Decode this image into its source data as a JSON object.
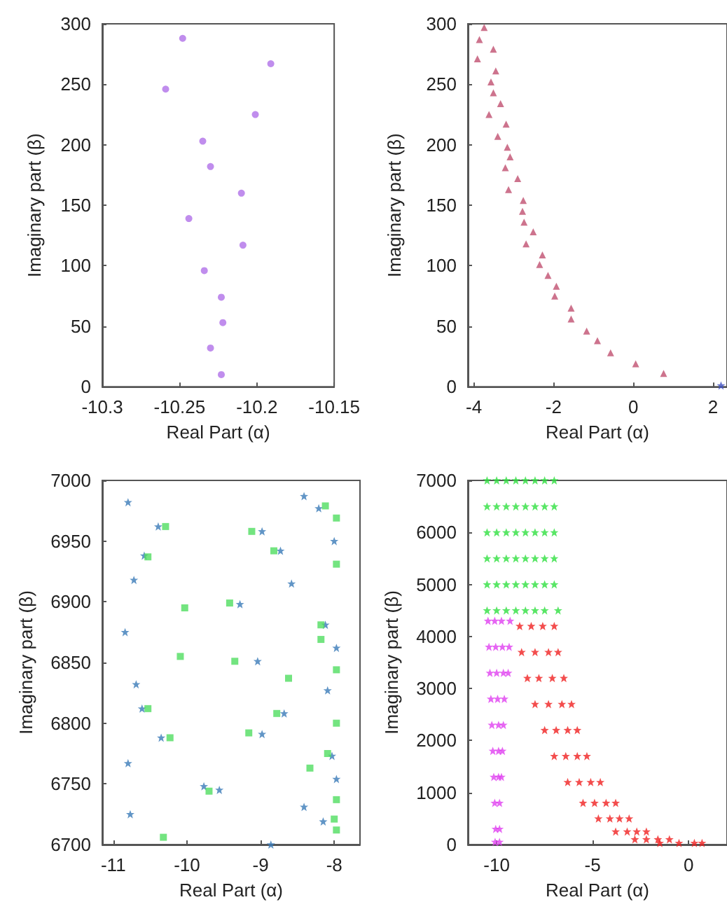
{
  "chart_data": [
    {
      "type": "scatter",
      "xlabel": "Real Part (α)",
      "ylabel": "Imaginary part (β)",
      "xlim": [
        -10.3,
        -10.15
      ],
      "xticks": [
        -10.3,
        -10.25,
        -10.2,
        -10.15
      ],
      "ylim": [
        0,
        300
      ],
      "yticks": [
        0,
        50,
        100,
        150,
        200,
        250,
        300
      ],
      "series": [
        {
          "color": "#b070e8",
          "marker": "circle",
          "x": [
            -10.248,
            -10.191,
            -10.259,
            -10.201,
            -10.235,
            -10.23,
            -10.21,
            -10.244,
            -10.209,
            -10.234,
            -10.223,
            -10.222,
            -10.23,
            -10.223
          ],
          "values": [
            288,
            267,
            246,
            225,
            203,
            182,
            160,
            139,
            117,
            96,
            74,
            53,
            32,
            10
          ]
        }
      ]
    },
    {
      "type": "scatter",
      "xlabel": "Real Part (α)",
      "ylabel": "Imaginary part (β)",
      "xlim": [
        -4.15,
        2.35
      ],
      "xticks": [
        -4,
        -2,
        0,
        2
      ],
      "ylim": [
        0,
        300
      ],
      "yticks": [
        0,
        50,
        100,
        150,
        200,
        250,
        300
      ],
      "series": [
        {
          "color": "#c05070",
          "marker": "triangle",
          "x": [
            -3.74,
            -3.86,
            -3.51,
            -3.91,
            -3.45,
            -3.57,
            -3.51,
            -3.33,
            -3.62,
            -3.19,
            -3.4,
            -3.16,
            -3.09,
            -3.21,
            -2.9,
            -3.13,
            -2.76,
            -2.78,
            -2.74,
            -2.51,
            -2.69,
            -2.28,
            -2.35,
            -2.14,
            -1.93,
            -1.97,
            -1.56,
            -1.56,
            -1.17,
            -0.9,
            -0.57,
            0.06,
            0.76
          ],
          "values": [
            297,
            287,
            279,
            271,
            261,
            252,
            243,
            234,
            225,
            217,
            207,
            198,
            190,
            181,
            172,
            163,
            154,
            145,
            136,
            128,
            118,
            109,
            101,
            92,
            83,
            75,
            65,
            56,
            46,
            38,
            28,
            19,
            11
          ]
        },
        {
          "color": "#4050c0",
          "marker": "star",
          "x": [
            2.2
          ],
          "values": [
            1
          ]
        }
      ]
    },
    {
      "type": "scatter",
      "xlabel": "Real Part (α)",
      "ylabel": "Imaginary part (β)",
      "xlim": [
        -11.15,
        -7.65
      ],
      "xticks": [
        -11,
        -10,
        -9,
        -8
      ],
      "ylim": [
        6700,
        7000
      ],
      "yticks": [
        6700,
        6750,
        6800,
        6850,
        6900,
        6950,
        7000
      ],
      "series": [
        {
          "color": "#3a7ab8",
          "marker": "star",
          "x": [
            -10.8,
            -10.39,
            -10.58,
            -10.72,
            -10.84,
            -10.69,
            -10.61,
            -10.35,
            -10.8,
            -9.77,
            -9.56,
            -10.77,
            -8.98,
            -8.73,
            -8.58,
            -9.28,
            -9.04,
            -8.68,
            -8.98,
            -8.41,
            -8.21,
            -8.0,
            -8.12,
            -7.97,
            -8.09,
            -8.03,
            -8.41,
            -8.15,
            -7.97,
            -8.86
          ],
          "values": [
            6982,
            6962,
            6938,
            6918,
            6875,
            6832,
            6812,
            6788,
            6767,
            6748,
            6745,
            6725,
            6958,
            6942,
            6915,
            6898,
            6851,
            6808,
            6791,
            6987,
            6977,
            6950,
            6881,
            6862,
            6827,
            6773,
            6731,
            6719,
            6754,
            6700
          ]
        },
        {
          "color": "#50dd60",
          "marker": "square",
          "x": [
            -10.29,
            -10.53,
            -10.03,
            -10.09,
            -10.53,
            -10.23,
            -9.7,
            -10.32,
            -9.12,
            -8.82,
            -9.42,
            -9.35,
            -8.62,
            -8.78,
            -9.16,
            -8.12,
            -7.97,
            -7.97,
            -8.18,
            -8.18,
            -7.97,
            -7.97,
            -8.09,
            -8.33,
            -7.97,
            -8.0,
            -7.97
          ],
          "values": [
            6962,
            6937,
            6895,
            6855,
            6812,
            6788,
            6744,
            6706,
            6958,
            6942,
            6899,
            6851,
            6837,
            6808,
            6792,
            6979,
            6969,
            6931,
            6881,
            6869,
            6844,
            6800,
            6775,
            6763,
            6737,
            6721,
            6712
          ]
        }
      ]
    },
    {
      "type": "scatter",
      "xlabel": "Real Part (α)",
      "ylabel": "Imaginary part (β)",
      "xlim": [
        -11.5,
        2
      ],
      "xticks": [
        -10,
        -5,
        0
      ],
      "ylim": [
        0,
        7000
      ],
      "yticks": [
        0,
        1000,
        2000,
        3000,
        4000,
        5000,
        6000,
        7000
      ],
      "series": [
        {
          "color": "#e040f0",
          "marker": "star",
          "x": [
            -10.45,
            -10.1,
            -9.75,
            -9.3,
            -10.4,
            -10.05,
            -9.7,
            -9.35,
            -10.35,
            -10.0,
            -9.65,
            -9.4,
            -10.3,
            -9.95,
            -9.6,
            -10.25,
            -9.9,
            -9.65,
            -10.2,
            -9.9,
            -9.7,
            -10.15,
            -9.9,
            -9.75,
            -10.1,
            -9.85,
            -10.05,
            -9.85,
            -10.08,
            -9.85
          ],
          "values": [
            4300,
            4300,
            4300,
            4300,
            3800,
            3800,
            3800,
            3800,
            3300,
            3300,
            3300,
            3300,
            2800,
            2800,
            2800,
            2300,
            2300,
            2300,
            1800,
            1800,
            1800,
            1300,
            1300,
            1300,
            800,
            800,
            300,
            300,
            50,
            50
          ]
        },
        {
          "color": "#30e040",
          "marker": "star",
          "x": [
            -10.5,
            -10,
            -9.5,
            -9,
            -8.5,
            -8,
            -7.5,
            -7,
            -10.5,
            -10,
            -9.5,
            -9,
            -8.5,
            -8,
            -7.5,
            -7,
            -10.5,
            -10,
            -9.5,
            -9,
            -8.5,
            -8,
            -7.5,
            -7,
            -10.5,
            -10,
            -9.5,
            -9,
            -8.5,
            -8,
            -7.5,
            -7,
            -10.5,
            -10,
            -9.5,
            -9,
            -8.5,
            -8,
            -7.5,
            -7,
            -10.5,
            -10,
            -9.5,
            -9,
            -8.5,
            -8,
            -7.5,
            -6.8
          ],
          "values": [
            7000,
            7000,
            7000,
            7000,
            7000,
            7000,
            7000,
            7000,
            6500,
            6500,
            6500,
            6500,
            6500,
            6500,
            6500,
            6500,
            6000,
            6000,
            6000,
            6000,
            6000,
            6000,
            6000,
            6000,
            5500,
            5500,
            5500,
            5500,
            5500,
            5500,
            5500,
            5500,
            5000,
            5000,
            5000,
            5000,
            5000,
            5000,
            5000,
            5000,
            4500,
            4500,
            4500,
            4500,
            4500,
            4500,
            4500,
            4500
          ]
        },
        {
          "color": "#f02020",
          "marker": "star",
          "x": [
            -8.8,
            -8.2,
            -7.6,
            -7.0,
            -8.7,
            -8.0,
            -7.3,
            -6.8,
            -8.4,
            -7.8,
            -7.1,
            -6.5,
            -8.0,
            -7.3,
            -6.6,
            -6.1,
            -7.5,
            -6.9,
            -6.3,
            -5.8,
            -7.0,
            -6.4,
            -5.8,
            -5.3,
            -6.3,
            -5.7,
            -5.1,
            -4.6,
            -5.5,
            -4.9,
            -4.3,
            -3.8,
            -4.7,
            -4.1,
            -3.6,
            -3.1,
            -3.8,
            -3.2,
            -2.7,
            -2.2,
            -2.8,
            -2.2,
            -1.6,
            -1.0,
            -1.5,
            -0.5,
            0.3,
            0.7
          ],
          "values": [
            4200,
            4200,
            4200,
            4200,
            3700,
            3700,
            3700,
            3700,
            3200,
            3200,
            3200,
            3200,
            2700,
            2700,
            2700,
            2700,
            2200,
            2200,
            2200,
            2200,
            1700,
            1700,
            1700,
            1700,
            1200,
            1200,
            1200,
            1200,
            800,
            800,
            800,
            800,
            500,
            500,
            500,
            500,
            250,
            250,
            250,
            250,
            100,
            100,
            100,
            100,
            30,
            30,
            30,
            30
          ]
        }
      ]
    }
  ]
}
